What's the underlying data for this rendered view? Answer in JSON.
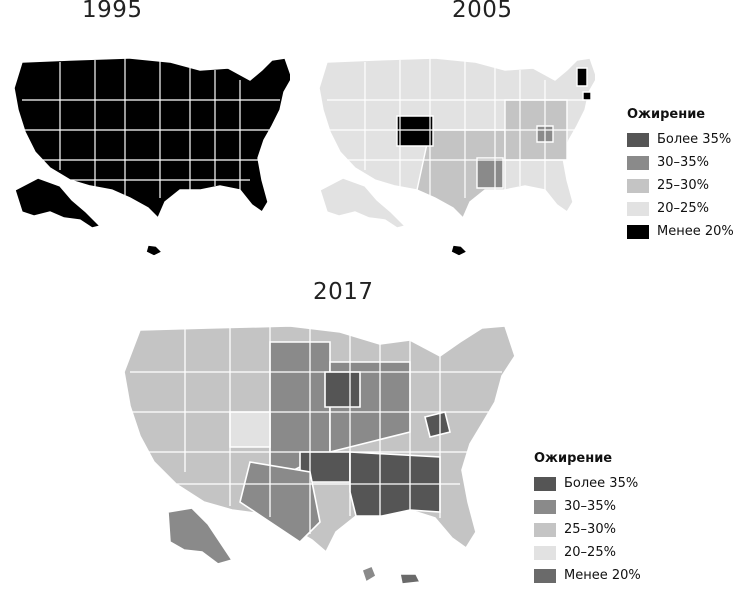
{
  "years": {
    "top_left": "1995",
    "top_right": "2005",
    "bottom": "2017"
  },
  "legend_top": {
    "title": "Ожирение",
    "items": [
      {
        "label": "Более 35%",
        "color": "#555555"
      },
      {
        "label": "30–35%",
        "color": "#8a8a8a"
      },
      {
        "label": "25–30%",
        "color": "#c4c4c4"
      },
      {
        "label": "20–25%",
        "color": "#e2e2e2"
      },
      {
        "label": "Менее 20%",
        "color": "#000000"
      }
    ]
  },
  "legend_bottom": {
    "title": "Ожирение",
    "items": [
      {
        "label": "Более 35%",
        "color": "#555555"
      },
      {
        "label": "30–35%",
        "color": "#8a8a8a"
      },
      {
        "label": "25–30%",
        "color": "#c4c4c4"
      },
      {
        "label": "20–25%",
        "color": "#e2e2e2"
      },
      {
        "label": "Менее 20%",
        "color": "#6a6a6a"
      }
    ]
  }
}
